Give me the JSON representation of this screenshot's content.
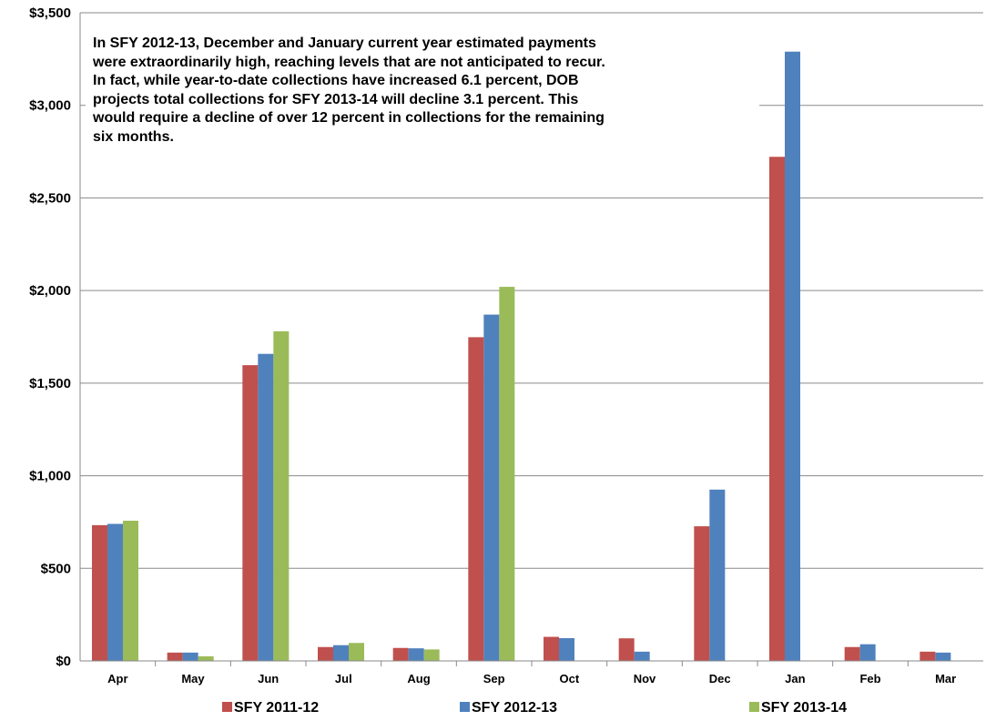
{
  "chart_data": {
    "type": "bar",
    "categories": [
      "Apr",
      "May",
      "Jun",
      "Jul",
      "Aug",
      "Sep",
      "Oct",
      "Nov",
      "Dec",
      "Jan",
      "Feb",
      "Mar"
    ],
    "series": [
      {
        "name": "SFY 2011-12",
        "color": "#c0504d",
        "values": [
          733,
          45,
          1597,
          75,
          70,
          1748,
          130,
          122,
          727,
          2722,
          75,
          50
        ]
      },
      {
        "name": "SFY 2012-13",
        "color": "#4f81bd",
        "values": [
          740,
          45,
          1658,
          85,
          68,
          1870,
          123,
          50,
          925,
          3290,
          90,
          45
        ]
      },
      {
        "name": "SFY 2013-14",
        "color": "#9bbb59",
        "values": [
          757,
          25,
          1780,
          97,
          62,
          2020,
          null,
          null,
          null,
          null,
          null,
          null
        ]
      }
    ],
    "ylim": [
      0,
      3500
    ],
    "yticks": [
      0,
      500,
      1000,
      1500,
      2000,
      2500,
      3000,
      3500
    ],
    "ytick_labels": [
      "$0",
      "$500",
      "$1,000",
      "$1,500",
      "$2,000",
      "$2,500",
      "$3,000",
      "$3,500"
    ],
    "grid": true,
    "legend_position": "bottom",
    "title": "",
    "xlabel": "",
    "ylabel": "",
    "annotation": {
      "lines": [
        "In SFY 2012-13, December and January current year estimated payments",
        "were extraordinarily high, reaching levels that are not anticipated to recur.",
        "In fact, while year-to-date collections have increased 6.1 percent, DOB",
        "projects total collections for SFY 2013-14 will decline 3.1 percent.  This",
        "would require a decline of over 12 percent in collections for the remaining",
        "six months."
      ]
    }
  }
}
